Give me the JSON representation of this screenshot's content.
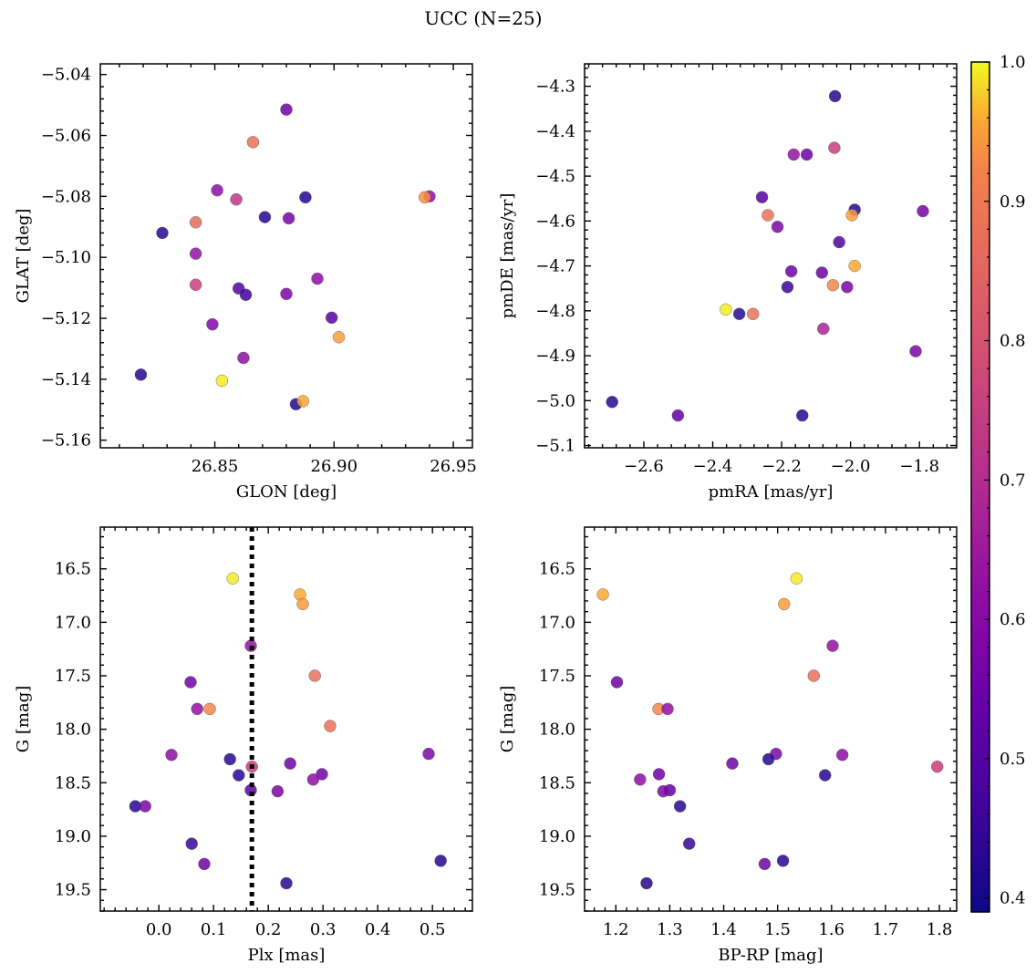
{
  "figure": {
    "title": "UCC (N=25)",
    "colorbar": {
      "cmap": "plasma",
      "range": [
        0.39,
        1.0
      ],
      "ticks": [
        0.4,
        0.5,
        0.6,
        0.7,
        0.8,
        0.9,
        1.0
      ],
      "tick_labels": [
        "0.4",
        "0.5",
        "0.6",
        "0.7",
        "0.8",
        "0.9",
        "1.0"
      ]
    }
  },
  "chart_data": [
    {
      "type": "scatter",
      "id": "glon-glat",
      "xlabel": "GLON [deg]",
      "ylabel": "GLAT [deg]",
      "xlim": [
        26.802,
        26.958
      ],
      "ylim": [
        -5.1625,
        -5.0365
      ],
      "xticks": [
        26.85,
        26.9,
        26.95
      ],
      "xtick_labels": [
        "26.85",
        "26.90",
        "26.95"
      ],
      "yticks": [
        -5.04,
        -5.06,
        -5.08,
        -5.1,
        -5.12,
        -5.14,
        -5.16
      ],
      "ytick_labels": [
        "−5.04",
        "−5.06",
        "−5.08",
        "−5.10",
        "−5.12",
        "−5.14",
        "−5.16"
      ],
      "points": [
        {
          "x": 26.88,
          "y": -5.0515,
          "c": 0.52
        },
        {
          "x": 26.866,
          "y": -5.0622,
          "c": 0.78
        },
        {
          "x": 26.851,
          "y": -5.078,
          "c": 0.57
        },
        {
          "x": 26.859,
          "y": -5.081,
          "c": 0.66
        },
        {
          "x": 26.888,
          "y": -5.0803,
          "c": 0.42
        },
        {
          "x": 26.94,
          "y": -5.08,
          "c": 0.57
        },
        {
          "x": 26.938,
          "y": -5.0803,
          "c": 0.84
        },
        {
          "x": 26.871,
          "y": -5.0868,
          "c": 0.42
        },
        {
          "x": 26.881,
          "y": -5.0872,
          "c": 0.53
        },
        {
          "x": 26.842,
          "y": -5.0885,
          "c": 0.77
        },
        {
          "x": 26.828,
          "y": -5.092,
          "c": 0.42
        },
        {
          "x": 26.842,
          "y": -5.0988,
          "c": 0.58
        },
        {
          "x": 26.893,
          "y": -5.107,
          "c": 0.57
        },
        {
          "x": 26.842,
          "y": -5.109,
          "c": 0.68
        },
        {
          "x": 26.86,
          "y": -5.1102,
          "c": 0.48
        },
        {
          "x": 26.863,
          "y": -5.1123,
          "c": 0.45
        },
        {
          "x": 26.88,
          "y": -5.112,
          "c": 0.54
        },
        {
          "x": 26.899,
          "y": -5.1198,
          "c": 0.48
        },
        {
          "x": 26.849,
          "y": -5.122,
          "c": 0.55
        },
        {
          "x": 26.902,
          "y": -5.1262,
          "c": 0.86
        },
        {
          "x": 26.862,
          "y": -5.133,
          "c": 0.57
        },
        {
          "x": 26.819,
          "y": -5.1385,
          "c": 0.42
        },
        {
          "x": 26.853,
          "y": -5.1405,
          "c": 0.98
        },
        {
          "x": 26.884,
          "y": -5.1482,
          "c": 0.41
        },
        {
          "x": 26.887,
          "y": -5.1472,
          "c": 0.88
        }
      ]
    },
    {
      "type": "scatter",
      "id": "pmra-pmde",
      "xlabel": "pmRA [mas/yr]",
      "ylabel": "pmDE [mas/yr]",
      "xlim": [
        -2.772,
        -1.692
      ],
      "ylim": [
        -5.105,
        -4.25
      ],
      "xticks": [
        -2.6,
        -2.4,
        -2.2,
        -2.0,
        -1.8
      ],
      "xtick_labels": [
        "−2.6",
        "−2.4",
        "−2.2",
        "−2.0",
        "−1.8"
      ],
      "yticks": [
        -4.3,
        -4.4,
        -4.5,
        -4.6,
        -4.7,
        -4.8,
        -4.9,
        -5.0,
        -5.1
      ],
      "ytick_labels": [
        "−4.3",
        "−4.4",
        "−4.5",
        "−4.6",
        "−4.7",
        "−4.8",
        "−4.9",
        "−5.0",
        "−5.1"
      ],
      "points": [
        {
          "x": -2.045,
          "y": -4.322,
          "c": 0.42
        },
        {
          "x": -2.047,
          "y": -4.437,
          "c": 0.68
        },
        {
          "x": -2.165,
          "y": -4.452,
          "c": 0.58
        },
        {
          "x": -2.127,
          "y": -4.452,
          "c": 0.52
        },
        {
          "x": -2.257,
          "y": -4.547,
          "c": 0.48
        },
        {
          "x": -1.988,
          "y": -4.575,
          "c": 0.42
        },
        {
          "x": -1.79,
          "y": -4.578,
          "c": 0.53
        },
        {
          "x": -2.24,
          "y": -4.587,
          "c": 0.78
        },
        {
          "x": -1.996,
          "y": -4.587,
          "c": 0.86
        },
        {
          "x": -2.212,
          "y": -4.613,
          "c": 0.54
        },
        {
          "x": -2.033,
          "y": -4.647,
          "c": 0.48
        },
        {
          "x": -1.988,
          "y": -4.7,
          "c": 0.88
        },
        {
          "x": -2.172,
          "y": -4.712,
          "c": 0.52
        },
        {
          "x": -2.083,
          "y": -4.715,
          "c": 0.52
        },
        {
          "x": -2.183,
          "y": -4.747,
          "c": 0.44
        },
        {
          "x": -2.051,
          "y": -4.743,
          "c": 0.82
        },
        {
          "x": -2.01,
          "y": -4.747,
          "c": 0.54
        },
        {
          "x": -2.362,
          "y": -4.797,
          "c": 0.98
        },
        {
          "x": -2.323,
          "y": -4.807,
          "c": 0.42
        },
        {
          "x": -2.283,
          "y": -4.807,
          "c": 0.78
        },
        {
          "x": -2.079,
          "y": -4.84,
          "c": 0.62
        },
        {
          "x": -1.811,
          "y": -4.89,
          "c": 0.54
        },
        {
          "x": -2.692,
          "y": -5.003,
          "c": 0.42
        },
        {
          "x": -2.501,
          "y": -5.033,
          "c": 0.5
        },
        {
          "x": -2.14,
          "y": -5.033,
          "c": 0.42
        }
      ]
    },
    {
      "type": "scatter",
      "id": "plx-g",
      "xlabel": "Plx [mas]",
      "ylabel": "G [mag]",
      "xlim": [
        -0.107,
        0.573
      ],
      "ylim": [
        19.7,
        16.11
      ],
      "invert_y": true,
      "vline": {
        "x": 0.17,
        "style": "dotted"
      },
      "xticks": [
        0.0,
        0.1,
        0.2,
        0.3,
        0.4,
        0.5
      ],
      "xtick_labels": [
        "0.0",
        "0.1",
        "0.2",
        "0.3",
        "0.4",
        "0.5"
      ],
      "yticks": [
        16.5,
        17.0,
        17.5,
        18.0,
        18.5,
        19.0,
        19.5
      ],
      "ytick_labels": [
        "16.5",
        "17.0",
        "17.5",
        "18.0",
        "18.5",
        "19.0",
        "19.5"
      ],
      "points": [
        {
          "x": 0.135,
          "y": 16.59,
          "c": 0.98
        },
        {
          "x": 0.258,
          "y": 16.74,
          "c": 0.88
        },
        {
          "x": 0.263,
          "y": 16.83,
          "c": 0.86
        },
        {
          "x": 0.168,
          "y": 17.22,
          "c": 0.58
        },
        {
          "x": 0.285,
          "y": 17.5,
          "c": 0.78
        },
        {
          "x": 0.058,
          "y": 17.56,
          "c": 0.52
        },
        {
          "x": 0.07,
          "y": 17.81,
          "c": 0.58
        },
        {
          "x": 0.093,
          "y": 17.81,
          "c": 0.82
        },
        {
          "x": 0.313,
          "y": 17.97,
          "c": 0.78
        },
        {
          "x": 0.493,
          "y": 18.23,
          "c": 0.54
        },
        {
          "x": 0.023,
          "y": 18.24,
          "c": 0.57
        },
        {
          "x": 0.13,
          "y": 18.28,
          "c": 0.42
        },
        {
          "x": 0.24,
          "y": 18.32,
          "c": 0.52
        },
        {
          "x": 0.17,
          "y": 18.35,
          "c": 0.68
        },
        {
          "x": 0.146,
          "y": 18.43,
          "c": 0.42
        },
        {
          "x": 0.298,
          "y": 18.42,
          "c": 0.52
        },
        {
          "x": 0.282,
          "y": 18.47,
          "c": 0.57
        },
        {
          "x": 0.168,
          "y": 18.57,
          "c": 0.5
        },
        {
          "x": 0.217,
          "y": 18.58,
          "c": 0.54
        },
        {
          "x": -0.043,
          "y": 18.72,
          "c": 0.42
        },
        {
          "x": -0.025,
          "y": 18.72,
          "c": 0.54
        },
        {
          "x": 0.06,
          "y": 19.07,
          "c": 0.44
        },
        {
          "x": 0.083,
          "y": 19.26,
          "c": 0.52
        },
        {
          "x": 0.233,
          "y": 19.44,
          "c": 0.42
        },
        {
          "x": 0.515,
          "y": 19.23,
          "c": 0.42
        }
      ]
    },
    {
      "type": "scatter",
      "id": "bprp-g",
      "xlabel": "BP-RP [mag]",
      "ylabel": "G [mag]",
      "xlim": [
        1.142,
        1.832
      ],
      "ylim": [
        19.7,
        16.11
      ],
      "invert_y": true,
      "xticks": [
        1.2,
        1.3,
        1.4,
        1.5,
        1.6,
        1.7,
        1.8
      ],
      "xtick_labels": [
        "1.2",
        "1.3",
        "1.4",
        "1.5",
        "1.6",
        "1.7",
        "1.8"
      ],
      "yticks": [
        16.5,
        17.0,
        17.5,
        18.0,
        18.5,
        19.0,
        19.5
      ],
      "ytick_labels": [
        "16.5",
        "17.0",
        "17.5",
        "18.0",
        "18.5",
        "19.0",
        "19.5"
      ],
      "points": [
        {
          "x": 1.535,
          "y": 16.59,
          "c": 0.98
        },
        {
          "x": 1.176,
          "y": 16.74,
          "c": 0.88
        },
        {
          "x": 1.512,
          "y": 16.83,
          "c": 0.86
        },
        {
          "x": 1.602,
          "y": 17.22,
          "c": 0.58
        },
        {
          "x": 1.567,
          "y": 17.5,
          "c": 0.78
        },
        {
          "x": 1.202,
          "y": 17.56,
          "c": 0.52
        },
        {
          "x": 1.279,
          "y": 17.81,
          "c": 0.82
        },
        {
          "x": 1.296,
          "y": 17.81,
          "c": 0.58
        },
        {
          "x": 1.497,
          "y": 18.23,
          "c": 0.54
        },
        {
          "x": 1.62,
          "y": 18.24,
          "c": 0.57
        },
        {
          "x": 1.483,
          "y": 18.28,
          "c": 0.42
        },
        {
          "x": 1.416,
          "y": 18.32,
          "c": 0.52
        },
        {
          "x": 1.796,
          "y": 18.35,
          "c": 0.68
        },
        {
          "x": 1.588,
          "y": 18.43,
          "c": 0.42
        },
        {
          "x": 1.28,
          "y": 18.42,
          "c": 0.52
        },
        {
          "x": 1.245,
          "y": 18.47,
          "c": 0.57
        },
        {
          "x": 1.3,
          "y": 18.57,
          "c": 0.5
        },
        {
          "x": 1.288,
          "y": 18.58,
          "c": 0.54
        },
        {
          "x": 1.319,
          "y": 18.72,
          "c": 0.42
        },
        {
          "x": 1.336,
          "y": 19.07,
          "c": 0.44
        },
        {
          "x": 1.476,
          "y": 19.26,
          "c": 0.52
        },
        {
          "x": 1.257,
          "y": 19.44,
          "c": 0.42
        },
        {
          "x": 1.51,
          "y": 19.23,
          "c": 0.42
        }
      ]
    }
  ]
}
